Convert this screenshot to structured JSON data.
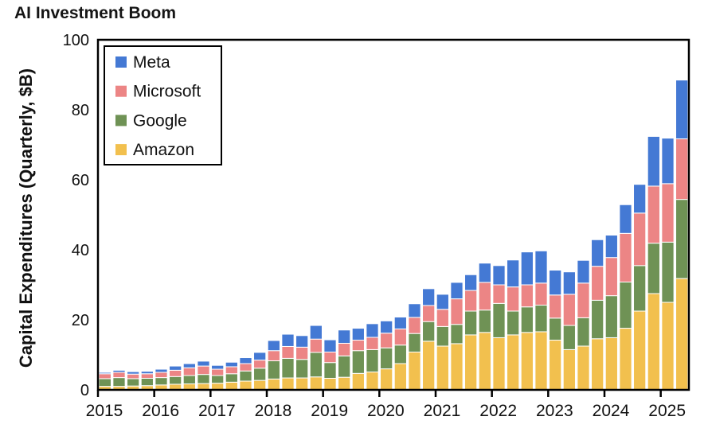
{
  "title": "AI Investment Boom",
  "y_axis": {
    "label": "Capital Expenditures (Quarterly, $B)",
    "ticks": [
      0,
      20,
      40,
      60,
      80,
      100
    ]
  },
  "x_axis": {
    "ticks": [
      "2015",
      "2016",
      "2017",
      "2018",
      "2019",
      "2020",
      "2021",
      "2022",
      "2023",
      "2024",
      "2025"
    ]
  },
  "legend": {
    "items": [
      {
        "label": "Meta",
        "color": "#4479d4"
      },
      {
        "label": "Microsoft",
        "color": "#ec8585"
      },
      {
        "label": "Google",
        "color": "#6f9255"
      },
      {
        "label": "Amazon",
        "color": "#f2c04e"
      }
    ],
    "position": "upper left"
  },
  "chart_data": {
    "type": "bar",
    "stacked": true,
    "title": "AI Investment Boom",
    "xlabel": "",
    "ylabel": "Capital Expenditures (Quarterly, $B)",
    "ylim": [
      0,
      100
    ],
    "y_ticks": [
      0,
      20,
      40,
      60,
      80,
      100
    ],
    "x_tick_labels": [
      "2015",
      "2016",
      "2017",
      "2018",
      "2019",
      "2020",
      "2021",
      "2022",
      "2023",
      "2024",
      "2025"
    ],
    "grid": false,
    "legend_position": "upper left",
    "categories": [
      "2015 Q1",
      "2015 Q2",
      "2015 Q3",
      "2015 Q4",
      "2016 Q1",
      "2016 Q2",
      "2016 Q3",
      "2016 Q4",
      "2017 Q1",
      "2017 Q2",
      "2017 Q3",
      "2017 Q4",
      "2018 Q1",
      "2018 Q2",
      "2018 Q3",
      "2018 Q4",
      "2019 Q1",
      "2019 Q2",
      "2019 Q3",
      "2019 Q4",
      "2020 Q1",
      "2020 Q2",
      "2020 Q3",
      "2020 Q4",
      "2021 Q1",
      "2021 Q2",
      "2021 Q3",
      "2021 Q4",
      "2022 Q1",
      "2022 Q2",
      "2022 Q3",
      "2022 Q4",
      "2023 Q1",
      "2023 Q2",
      "2023 Q3",
      "2023 Q4",
      "2024 Q1",
      "2024 Q2",
      "2024 Q3",
      "2024 Q4",
      "2025 Q1",
      "2025 Q2"
    ],
    "series": [
      {
        "name": "Amazon",
        "color": "#f2c04e",
        "values": [
          1.0,
          1.0,
          1.1,
          1.2,
          1.4,
          1.6,
          1.7,
          1.8,
          1.9,
          2.2,
          2.5,
          2.7,
          3.1,
          3.4,
          3.4,
          3.7,
          3.3,
          3.6,
          4.7,
          5.1,
          6.0,
          7.5,
          10.8,
          13.9,
          12.5,
          13.2,
          15.7,
          16.4,
          14.9,
          15.7,
          16.4,
          16.6,
          14.2,
          11.5,
          12.5,
          14.6,
          14.9,
          17.6,
          22.5,
          27.5,
          25.0,
          31.8
        ]
      },
      {
        "name": "Google",
        "color": "#6f9255",
        "values": [
          2.2,
          2.5,
          2.1,
          2.1,
          2.1,
          2.2,
          2.4,
          2.6,
          2.2,
          2.4,
          2.9,
          3.5,
          5.2,
          5.6,
          5.3,
          7.0,
          4.5,
          6.1,
          6.5,
          6.4,
          6.0,
          5.3,
          5.3,
          5.6,
          5.6,
          5.5,
          6.8,
          6.4,
          9.8,
          6.8,
          7.3,
          7.6,
          6.3,
          6.9,
          8.1,
          11.0,
          12.0,
          13.2,
          13.0,
          14.4,
          17.2,
          22.6
        ]
      },
      {
        "name": "Microsoft",
        "color": "#ec8585",
        "values": [
          1.4,
          1.5,
          1.3,
          1.3,
          1.5,
          1.8,
          2.2,
          2.4,
          1.8,
          2.0,
          2.1,
          2.3,
          2.9,
          3.4,
          3.5,
          3.8,
          3.0,
          3.6,
          3.0,
          3.5,
          4.2,
          4.6,
          4.6,
          4.6,
          4.9,
          7.3,
          5.9,
          7.9,
          5.3,
          6.9,
          6.3,
          6.3,
          6.6,
          8.9,
          9.9,
          9.7,
          10.9,
          13.9,
          15.0,
          16.3,
          16.7,
          17.3
        ]
      },
      {
        "name": "Meta",
        "color": "#4479d4",
        "values": [
          0.4,
          0.6,
          0.7,
          0.7,
          0.9,
          1.2,
          1.2,
          1.4,
          1.1,
          1.3,
          1.7,
          2.2,
          2.9,
          3.5,
          3.3,
          3.9,
          3.5,
          3.8,
          3.4,
          3.9,
          3.5,
          3.4,
          3.9,
          4.8,
          4.3,
          4.7,
          4.5,
          5.5,
          5.5,
          7.7,
          9.4,
          9.2,
          7.1,
          6.4,
          6.5,
          7.6,
          6.4,
          8.2,
          8.2,
          14.2,
          13.0,
          16.8
        ]
      }
    ]
  },
  "style": {
    "axis_color": "#000000",
    "text_color": "#111111",
    "background": "#ffffff",
    "bar_outline": "#ffffff"
  }
}
